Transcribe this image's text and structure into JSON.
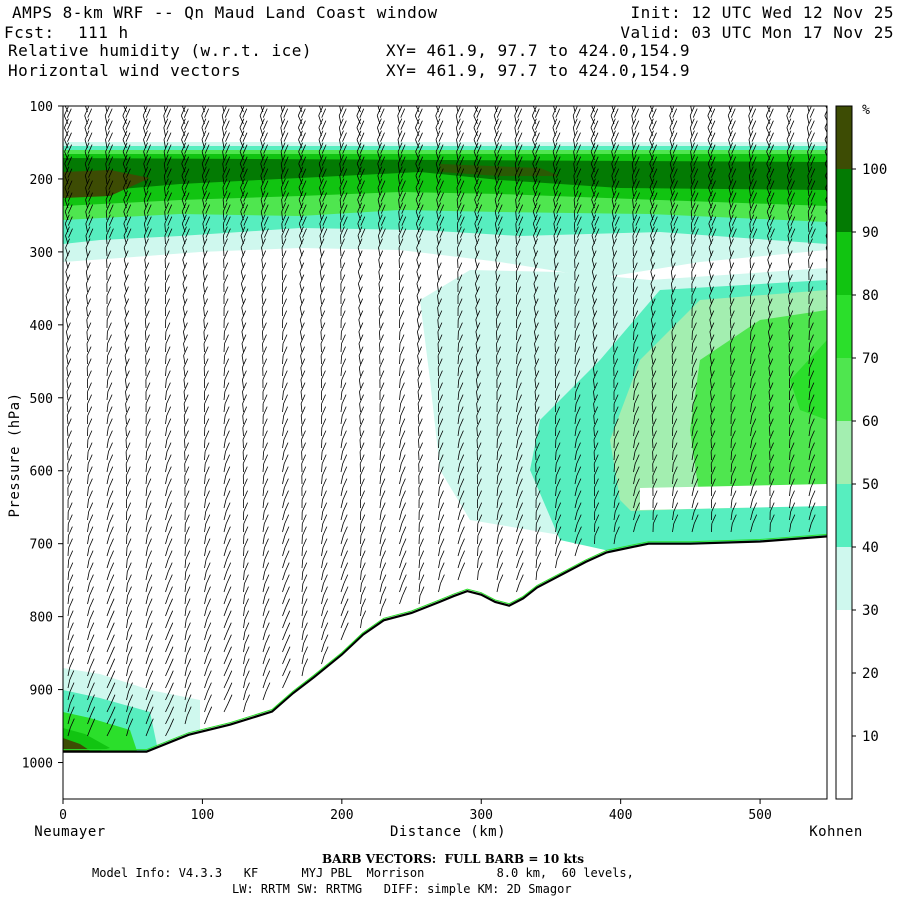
{
  "header": {
    "title": "AMPS 8-km WRF -- Qn Maud Land Coast window",
    "init": "Init: 12 UTC Wed 12 Nov 25",
    "fcst_label": "Fcst:",
    "fcst_value": "111 h",
    "valid": "Valid: 03 UTC Mon 17 Nov 25",
    "field1": "Relative humidity (w.r.t. ice)",
    "field2": "Horizontal wind vectors",
    "xy1": "XY= 461.9, 97.7 to 424.0,154.9",
    "xy2": "XY= 461.9, 97.7 to 424.0,154.9"
  },
  "footer": {
    "barb_note": "BARB VECTORS:  FULL BARB = 10 kts",
    "model_info": "Model Info: V4.3.3   KF      MYJ PBL  Morrison          8.0 km,  60 levels,",
    "model_info2": "LW: RRTM SW: RRTMG   DIFF: simple KM: 2D Smagor"
  },
  "chart_data": {
    "type": "heatmap",
    "title": "Relative humidity (w.r.t. ice) cross section with horizontal wind barbs",
    "xlabel": "Distance (km)",
    "ylabel": "Pressure (hPa)",
    "xlim": [
      0,
      548
    ],
    "ylim": [
      1050,
      100
    ],
    "x_ticks": [
      0,
      100,
      200,
      300,
      400,
      500
    ],
    "y_ticks": [
      100,
      200,
      300,
      400,
      500,
      600,
      700,
      800,
      900,
      1000
    ],
    "x_end_labels": {
      "left": "Neumayer",
      "right": "Kohnen"
    },
    "colorbar": {
      "unit": "%",
      "ticks": [
        10,
        20,
        30,
        40,
        50,
        60,
        70,
        80,
        90,
        100
      ],
      "levels": [
        {
          "from": 0,
          "to": 30,
          "color": "#ffffff"
        },
        {
          "from": 30,
          "to": 40,
          "color": "#cff8ee"
        },
        {
          "from": 40,
          "to": 50,
          "color": "#57eebf"
        },
        {
          "from": 50,
          "to": 60,
          "color": "#a3eeb0"
        },
        {
          "from": 60,
          "to": 70,
          "color": "#4fe64f"
        },
        {
          "from": 70,
          "to": 80,
          "color": "#2bdf2b"
        },
        {
          "from": 80,
          "to": 90,
          "color": "#11c411"
        },
        {
          "from": 90,
          "to": 100,
          "color": "#037a03"
        },
        {
          "from": 100,
          "to": 110,
          "color": "#3d4c04"
        }
      ]
    },
    "terrain_surface_pressure": {
      "x_km": [
        0,
        20,
        60,
        90,
        120,
        150,
        165,
        180,
        200,
        215,
        230,
        250,
        270,
        280,
        290,
        300,
        310,
        320,
        330,
        340,
        360,
        375,
        390,
        420,
        450,
        500,
        548
      ],
      "p_hpa": [
        985,
        985,
        985,
        962,
        948,
        930,
        905,
        883,
        852,
        825,
        805,
        795,
        780,
        772,
        765,
        770,
        780,
        785,
        775,
        760,
        740,
        725,
        712,
        700,
        700,
        697,
        690
      ]
    },
    "barb_note": "FULL BARB = 10 kts"
  }
}
